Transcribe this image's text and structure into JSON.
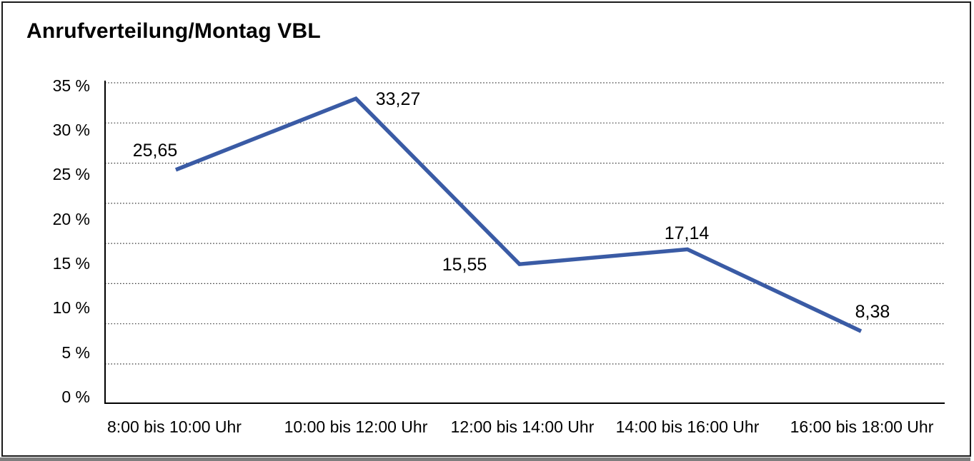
{
  "title": "Anrufverteilung/Montag VBL",
  "chart_data": {
    "type": "line",
    "title": "Anrufverteilung/Montag VBL",
    "categories": [
      "8:00 bis 10:00 Uhr",
      "10:00 bis 12:00 Uhr",
      "12:00 bis 14:00 Uhr",
      "14:00 bis 16:00 Uhr",
      "16:00 bis 18:00 Uhr"
    ],
    "values": [
      25.65,
      33.27,
      15.55,
      17.14,
      8.38
    ],
    "value_labels": [
      "25,65",
      "33,27",
      "15,55",
      "17,14",
      "8,38"
    ],
    "y_ticks": [
      "35 %",
      "30 %",
      "25 %",
      "20 %",
      "15 %",
      "10 %",
      "5 %",
      "0 %"
    ],
    "ylim": [
      0,
      35
    ],
    "xlabel": "",
    "ylabel": "",
    "grid": "horizontal-dotted",
    "legend": "none",
    "line_color": "#3A5BA5"
  }
}
